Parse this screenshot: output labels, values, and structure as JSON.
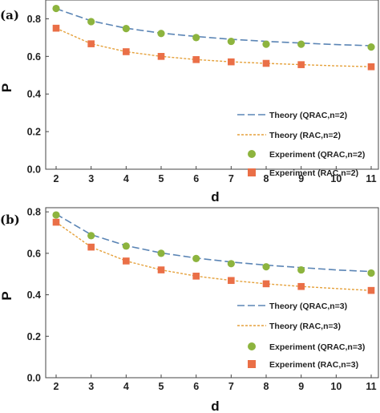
{
  "chart_data": [
    {
      "type": "line",
      "panel_label": "(a)",
      "xlabel": "d",
      "ylabel": "P",
      "x": [
        2,
        3,
        4,
        5,
        6,
        7,
        8,
        9,
        10,
        11
      ],
      "xlim": [
        2,
        11
      ],
      "ylim": [
        0,
        0.9
      ],
      "xticks": [
        "2",
        "3",
        "4",
        "5",
        "6",
        "7",
        "8",
        "9",
        "10",
        "11"
      ],
      "yticks": [
        "0.0",
        "0.2",
        "0.4",
        "0.6",
        "0.8"
      ],
      "grid": false,
      "legend_position": "bottom-right",
      "series": [
        {
          "name": "Theory (QRAC,n=2)",
          "kind": "theory",
          "style": "long-dash",
          "color": "#5b85b5",
          "x": [
            2,
            3,
            4,
            5,
            6,
            7,
            8,
            9,
            10,
            11
          ],
          "values": [
            0.854,
            0.789,
            0.75,
            0.724,
            0.706,
            0.691,
            0.68,
            0.671,
            0.663,
            0.657
          ]
        },
        {
          "name": "Theory (RAC,n=2)",
          "kind": "theory",
          "style": "short-dash",
          "color": "#e5a13b",
          "x": [
            2,
            3,
            4,
            5,
            6,
            7,
            8,
            9,
            10,
            11
          ],
          "values": [
            0.75,
            0.667,
            0.625,
            0.6,
            0.583,
            0.571,
            0.563,
            0.556,
            0.55,
            0.545
          ]
        },
        {
          "name": "Experiment (QRAC,n=2)",
          "kind": "experiment",
          "marker": "circle",
          "color": "#8db43e",
          "x": [
            2,
            3,
            4,
            5,
            6,
            7,
            8,
            9,
            10,
            11
          ],
          "values": [
            0.855,
            0.785,
            0.748,
            0.722,
            0.7,
            0.68,
            0.665,
            0.665,
            null,
            0.65
          ]
        },
        {
          "name": "Experiment (RAC,n=2)",
          "kind": "experiment",
          "marker": "square",
          "color": "#ea6f47",
          "x": [
            2,
            3,
            4,
            5,
            6,
            7,
            8,
            9,
            10,
            11
          ],
          "values": [
            0.75,
            0.667,
            0.625,
            0.6,
            0.583,
            0.571,
            0.563,
            0.556,
            null,
            0.545
          ]
        }
      ]
    },
    {
      "type": "line",
      "panel_label": "(b)",
      "xlabel": "d",
      "ylabel": "P",
      "x": [
        2,
        3,
        4,
        5,
        6,
        7,
        8,
        9,
        10,
        11
      ],
      "xlim": [
        2,
        11
      ],
      "ylim": [
        0,
        0.82
      ],
      "xticks": [
        "2",
        "3",
        "4",
        "5",
        "6",
        "7",
        "8",
        "9",
        "10",
        "11"
      ],
      "yticks": [
        "0.0",
        "0.2",
        "0.4",
        "0.6",
        "0.8"
      ],
      "grid": false,
      "legend_position": "bottom-right",
      "series": [
        {
          "name": "Theory (QRAC,n=3)",
          "kind": "theory",
          "style": "long-dash",
          "color": "#5b85b5",
          "x": [
            2,
            3,
            4,
            5,
            6,
            7,
            8,
            9,
            10,
            11
          ],
          "values": [
            0.789,
            0.69,
            0.637,
            0.602,
            0.577,
            0.558,
            0.543,
            0.531,
            0.52,
            0.512
          ]
        },
        {
          "name": "Theory (RAC,n=3)",
          "kind": "theory",
          "style": "short-dash",
          "color": "#e5a13b",
          "x": [
            2,
            3,
            4,
            5,
            6,
            7,
            8,
            9,
            10,
            11
          ],
          "values": [
            0.75,
            0.63,
            0.563,
            0.52,
            0.49,
            0.469,
            0.453,
            0.44,
            0.43,
            0.421
          ]
        },
        {
          "name": "Experiment (QRAC,n=3)",
          "kind": "experiment",
          "marker": "circle",
          "color": "#8db43e",
          "x": [
            2,
            3,
            4,
            5,
            6,
            7,
            8,
            9,
            10,
            11
          ],
          "values": [
            0.785,
            0.685,
            0.635,
            0.6,
            0.575,
            0.55,
            0.535,
            0.52,
            null,
            0.505
          ]
        },
        {
          "name": "Experiment (RAC,n=3)",
          "kind": "experiment",
          "marker": "square",
          "color": "#ea6f47",
          "x": [
            2,
            3,
            4,
            5,
            6,
            7,
            8,
            9,
            10,
            11
          ],
          "values": [
            0.75,
            0.63,
            0.563,
            0.52,
            0.49,
            0.469,
            0.453,
            0.44,
            null,
            0.421
          ]
        }
      ]
    }
  ]
}
